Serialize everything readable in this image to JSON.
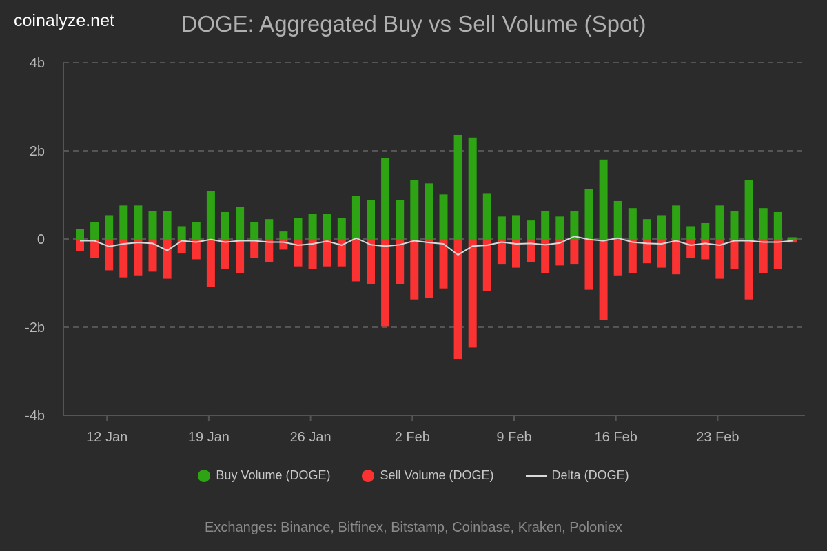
{
  "logo": "coinalyze.net",
  "footer": "Exchanges: Binance, Bitfinex, Bitstamp, Coinbase, Kraken, Poloniex",
  "colors": {
    "buy": "#2ea314",
    "sell": "#fb3232",
    "delta": "#d8d8d8",
    "grid": "#555555"
  },
  "chart_data": {
    "type": "bar",
    "title": "DOGE: Aggregated Buy vs Sell Volume (Spot)",
    "xlabel": "",
    "ylabel": "",
    "ylim": [
      -4,
      4
    ],
    "yunit": "billions",
    "yticks": [
      {
        "v": 4,
        "label": "4b"
      },
      {
        "v": 2,
        "label": "2b"
      },
      {
        "v": 0,
        "label": "0"
      },
      {
        "v": -2,
        "label": "-2b"
      },
      {
        "v": -4,
        "label": "-4b"
      }
    ],
    "xticks": [
      {
        "i": 2,
        "label": "12 Jan"
      },
      {
        "i": 9,
        "label": "19 Jan"
      },
      {
        "i": 16,
        "label": "26 Jan"
      },
      {
        "i": 23,
        "label": "2 Feb"
      },
      {
        "i": 30,
        "label": "9 Feb"
      },
      {
        "i": 37,
        "label": "16 Feb"
      },
      {
        "i": 44,
        "label": "23 Feb"
      }
    ],
    "grid": true,
    "legend_position": "bottom",
    "categories": [
      "10 Jan",
      "11 Jan",
      "12 Jan",
      "13 Jan",
      "14 Jan",
      "15 Jan",
      "16 Jan",
      "17 Jan",
      "18 Jan",
      "19 Jan",
      "20 Jan",
      "21 Jan",
      "22 Jan",
      "23 Jan",
      "24 Jan",
      "25 Jan",
      "26 Jan",
      "27 Jan",
      "28 Jan",
      "29 Jan",
      "30 Jan",
      "31 Jan",
      "1 Feb",
      "2 Feb",
      "3 Feb",
      "4 Feb",
      "5 Feb",
      "6 Feb",
      "7 Feb",
      "8 Feb",
      "9 Feb",
      "10 Feb",
      "11 Feb",
      "12 Feb",
      "13 Feb",
      "14 Feb",
      "15 Feb",
      "16 Feb",
      "17 Feb",
      "18 Feb",
      "19 Feb",
      "20 Feb",
      "21 Feb",
      "22 Feb",
      "23 Feb",
      "24 Feb",
      "25 Feb",
      "26 Feb",
      "27 Feb",
      "28 Feb"
    ],
    "series": [
      {
        "name": "Buy Volume (DOGE)",
        "values": [
          0.23,
          0.39,
          0.54,
          0.76,
          0.76,
          0.64,
          0.64,
          0.29,
          0.39,
          1.08,
          0.61,
          0.73,
          0.39,
          0.45,
          0.17,
          0.48,
          0.57,
          0.57,
          0.48,
          0.98,
          0.89,
          1.83,
          0.89,
          1.33,
          1.26,
          1.01,
          2.36,
          2.3,
          1.04,
          0.51,
          0.54,
          0.42,
          0.64,
          0.51,
          0.64,
          1.14,
          1.8,
          0.86,
          0.7,
          0.45,
          0.54,
          0.76,
          0.29,
          0.36,
          0.76,
          0.64,
          1.33,
          0.7,
          0.61,
          0.04
        ]
      },
      {
        "name": "Sell Volume (DOGE)",
        "values": [
          -0.27,
          -0.43,
          -0.71,
          -0.87,
          -0.84,
          -0.74,
          -0.9,
          -0.33,
          -0.46,
          -1.09,
          -0.68,
          -0.77,
          -0.43,
          -0.52,
          -0.24,
          -0.62,
          -0.68,
          -0.62,
          -0.62,
          -0.96,
          -1.02,
          -1.99,
          -1.02,
          -1.37,
          -1.34,
          -1.12,
          -2.72,
          -2.46,
          -1.18,
          -0.58,
          -0.65,
          -0.52,
          -0.77,
          -0.6,
          -0.58,
          -1.15,
          -1.84,
          -0.84,
          -0.77,
          -0.55,
          -0.65,
          -0.8,
          -0.43,
          -0.46,
          -0.9,
          -0.68,
          -1.37,
          -0.77,
          -0.68,
          -0.08
        ]
      },
      {
        "name": "Delta (DOGE)",
        "type": "line",
        "values": "buy + sell"
      }
    ]
  }
}
